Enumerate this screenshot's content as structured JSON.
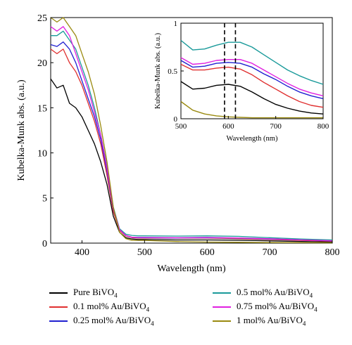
{
  "chart_data": [
    {
      "type": "line",
      "title": "",
      "xlabel": "Wavelength (nm)",
      "ylabel": "Kubelka-Munk abs. (a.u.)",
      "xlim": [
        350,
        800
      ],
      "ylim": [
        0,
        25
      ],
      "xticks": [
        400,
        500,
        600,
        700,
        800
      ],
      "yticks": [
        0,
        5,
        10,
        15,
        20,
        25
      ],
      "grid": false,
      "legend_position": "below plot, two columns",
      "series": [
        {
          "name": "Pure BiVO4",
          "color": "#000000",
          "x": [
            350,
            360,
            370,
            380,
            390,
            400,
            410,
            420,
            430,
            440,
            450,
            460,
            470,
            480,
            490,
            500,
            550,
            600,
            650,
            700,
            750,
            800
          ],
          "y": [
            18.2,
            17.2,
            17.5,
            15.5,
            15.0,
            14.0,
            12.5,
            11.0,
            9.0,
            6.5,
            3.0,
            1.2,
            0.6,
            0.45,
            0.4,
            0.4,
            0.35,
            0.35,
            0.33,
            0.25,
            0.18,
            0.12
          ]
        },
        {
          "name": "0.1 mol% Au/BiVO4",
          "color": "#e03030",
          "x": [
            350,
            360,
            370,
            380,
            390,
            400,
            410,
            420,
            430,
            440,
            450,
            460,
            470,
            480,
            490,
            500,
            550,
            600,
            650,
            700,
            750,
            800
          ],
          "y": [
            21.5,
            21.0,
            21.5,
            20.0,
            19.0,
            17.5,
            15.5,
            13.5,
            11.0,
            7.5,
            3.5,
            1.4,
            0.8,
            0.6,
            0.55,
            0.55,
            0.55,
            0.55,
            0.5,
            0.4,
            0.3,
            0.22
          ]
        },
        {
          "name": "0.25 mol% Au/BiVO4",
          "color": "#2020d0",
          "x": [
            350,
            360,
            370,
            380,
            390,
            400,
            410,
            420,
            430,
            440,
            450,
            460,
            470,
            480,
            490,
            500,
            550,
            600,
            650,
            700,
            750,
            800
          ],
          "y": [
            22.0,
            21.8,
            22.3,
            21.5,
            20.0,
            18.0,
            16.0,
            14.0,
            11.5,
            8.0,
            3.8,
            1.5,
            0.85,
            0.65,
            0.6,
            0.6,
            0.57,
            0.6,
            0.55,
            0.45,
            0.35,
            0.26
          ]
        },
        {
          "name": "0.5 mol% Au/BiVO4",
          "color": "#1a9a9a",
          "x": [
            350,
            360,
            370,
            380,
            390,
            400,
            410,
            420,
            430,
            440,
            450,
            460,
            470,
            480,
            490,
            500,
            550,
            600,
            650,
            700,
            750,
            800
          ],
          "y": [
            23.0,
            23.0,
            23.5,
            22.5,
            21.5,
            19.5,
            17.5,
            15.0,
            12.0,
            8.5,
            4.0,
            1.6,
            1.0,
            0.85,
            0.8,
            0.8,
            0.78,
            0.8,
            0.75,
            0.6,
            0.45,
            0.35
          ]
        },
        {
          "name": "0.75 mol% Au/BiVO4",
          "color": "#e020e0",
          "x": [
            350,
            360,
            370,
            380,
            390,
            400,
            410,
            420,
            430,
            440,
            450,
            460,
            470,
            480,
            490,
            500,
            550,
            600,
            650,
            700,
            750,
            800
          ],
          "y": [
            24.0,
            23.5,
            24.0,
            23.0,
            21.0,
            19.0,
            17.0,
            14.5,
            12.0,
            8.3,
            3.9,
            1.5,
            0.85,
            0.65,
            0.63,
            0.63,
            0.6,
            0.63,
            0.58,
            0.48,
            0.36,
            0.26
          ]
        },
        {
          "name": "1 mol% Au/BiVO4",
          "color": "#9a8a10",
          "x": [
            350,
            360,
            370,
            380,
            390,
            400,
            410,
            420,
            430,
            440,
            450,
            460,
            470,
            480,
            490,
            500,
            550,
            600,
            650,
            700,
            750,
            800
          ],
          "y": [
            25.0,
            24.5,
            25.0,
            24.0,
            23.0,
            21.0,
            19.0,
            16.5,
            13.0,
            9.0,
            4.0,
            1.2,
            0.5,
            0.3,
            0.3,
            0.3,
            0.18,
            0.12,
            0.09,
            0.06,
            0.05,
            0.04
          ]
        }
      ]
    },
    {
      "type": "line",
      "title": "",
      "xlabel": "Wavelength (nm)",
      "ylabel": "Kubelka-Munk abs. (a.u.)",
      "xlim": [
        500,
        800
      ],
      "ylim": [
        0,
        1
      ],
      "xticks": [
        500,
        600,
        700,
        800
      ],
      "yticks": [
        0,
        0.5,
        1
      ],
      "ytick_labels": [
        "0",
        "0.5",
        "1"
      ],
      "grid": false,
      "vertical_dashed_lines": [
        592,
        615
      ],
      "series": [
        {
          "name": "Pure BiVO4",
          "color": "#000000",
          "x": [
            500,
            525,
            550,
            575,
            600,
            625,
            650,
            675,
            700,
            725,
            750,
            775,
            800
          ],
          "y": [
            0.39,
            0.31,
            0.32,
            0.35,
            0.36,
            0.34,
            0.28,
            0.21,
            0.15,
            0.11,
            0.08,
            0.06,
            0.05
          ]
        },
        {
          "name": "0.1 mol% Au/BiVO4",
          "color": "#e03030",
          "x": [
            500,
            525,
            550,
            575,
            600,
            625,
            650,
            675,
            700,
            725,
            750,
            775,
            800
          ],
          "y": [
            0.57,
            0.51,
            0.51,
            0.53,
            0.54,
            0.52,
            0.46,
            0.38,
            0.31,
            0.24,
            0.18,
            0.14,
            0.12
          ]
        },
        {
          "name": "0.25 mol% Au/BiVO4",
          "color": "#2020d0",
          "x": [
            500,
            525,
            550,
            575,
            600,
            625,
            650,
            675,
            700,
            725,
            750,
            775,
            800
          ],
          "y": [
            0.61,
            0.54,
            0.55,
            0.58,
            0.59,
            0.58,
            0.54,
            0.47,
            0.41,
            0.34,
            0.28,
            0.24,
            0.21
          ]
        },
        {
          "name": "0.5 mol% Au/BiVO4",
          "color": "#1a9a9a",
          "x": [
            500,
            525,
            550,
            575,
            600,
            625,
            650,
            675,
            700,
            725,
            750,
            775,
            800
          ],
          "y": [
            0.82,
            0.72,
            0.73,
            0.77,
            0.8,
            0.8,
            0.75,
            0.67,
            0.59,
            0.51,
            0.45,
            0.4,
            0.36
          ]
        },
        {
          "name": "0.75 mol% Au/BiVO4",
          "color": "#e020e0",
          "x": [
            500,
            525,
            550,
            575,
            600,
            625,
            650,
            675,
            700,
            725,
            750,
            775,
            800
          ],
          "y": [
            0.64,
            0.57,
            0.58,
            0.61,
            0.62,
            0.62,
            0.58,
            0.51,
            0.44,
            0.37,
            0.31,
            0.27,
            0.24
          ]
        },
        {
          "name": "1 mol% Au/BiVO4",
          "color": "#9a8a10",
          "x": [
            500,
            525,
            550,
            575,
            600,
            625,
            650,
            675,
            700,
            725,
            750,
            775,
            800
          ],
          "y": [
            0.18,
            0.09,
            0.05,
            0.03,
            0.02,
            0.015,
            0.01,
            0.01,
            0.01,
            0.01,
            0.01,
            0.01,
            0.01
          ]
        }
      ]
    }
  ]
}
